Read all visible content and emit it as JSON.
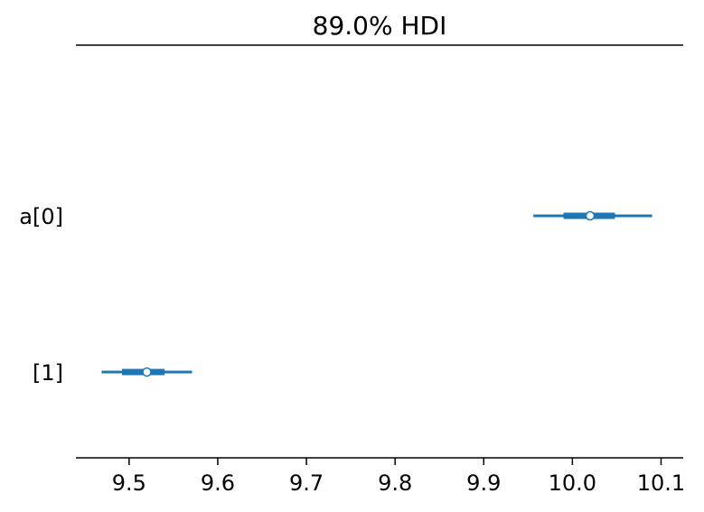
{
  "chart_data": {
    "type": "forest",
    "title": "89.0% HDI",
    "xlabel": "",
    "ylabel": "",
    "xlim": [
      9.44,
      10.125
    ],
    "x_ticks": [
      9.5,
      9.6,
      9.7,
      9.8,
      9.9,
      10.0,
      10.1
    ],
    "x_tick_labels": [
      "9.5",
      "9.6",
      "9.7",
      "9.8",
      "9.9",
      "10.0",
      "10.1"
    ],
    "grid": false,
    "color": "#1f77b4",
    "series": [
      {
        "label": "a[0]",
        "hdi": [
          9.956,
          10.09
        ],
        "iqr": [
          9.99,
          10.048
        ],
        "median": 10.02
      },
      {
        "label": "[1]",
        "hdi": [
          9.469,
          9.571
        ],
        "iqr": [
          9.492,
          9.54
        ],
        "median": 9.52
      }
    ]
  }
}
